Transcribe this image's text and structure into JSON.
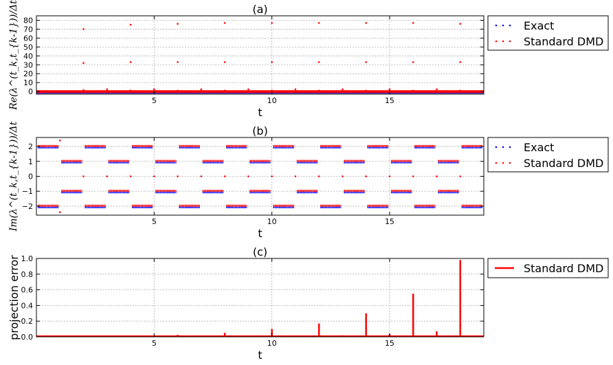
{
  "chart_data": [
    {
      "panel": "a",
      "type": "scatter",
      "title": "(a)",
      "xlabel": "t",
      "ylabel": "Re(λ^(t_k,t_{k-1}))/Δt",
      "xlim": [
        0,
        19
      ],
      "ylim": [
        -3,
        85
      ],
      "xticks": [
        5,
        10,
        15
      ],
      "yticks": [
        0,
        10,
        20,
        30,
        40,
        50,
        60,
        70,
        80
      ],
      "grid": true,
      "legend_placement": "outside-right-top",
      "series": [
        {
          "name": "Exact",
          "color": "#0000ff",
          "bands": [
            -1.5,
            -1.0
          ]
        },
        {
          "name": "Standard DMD",
          "color": "#ff0000",
          "bands": [
            -0.8,
            0.6
          ],
          "points": [
            [
              2,
              70
            ],
            [
              2,
              32
            ],
            [
              2,
              1.5
            ],
            [
              3,
              2.5
            ],
            [
              4,
              75
            ],
            [
              4,
              33
            ],
            [
              4,
              1
            ],
            [
              5,
              2.5
            ],
            [
              6,
              76
            ],
            [
              6,
              33
            ],
            [
              6,
              1
            ],
            [
              7,
              2.5
            ],
            [
              8,
              77
            ],
            [
              8,
              33
            ],
            [
              8,
              1
            ],
            [
              9,
              2.5
            ],
            [
              10,
              77
            ],
            [
              10,
              33
            ],
            [
              10,
              1
            ],
            [
              11,
              2.5
            ],
            [
              12,
              77
            ],
            [
              12,
              33
            ],
            [
              12,
              1
            ],
            [
              13,
              2.5
            ],
            [
              14,
              77
            ],
            [
              14,
              33
            ],
            [
              14,
              1
            ],
            [
              15,
              2.5
            ],
            [
              16,
              77
            ],
            [
              16,
              33
            ],
            [
              16,
              1
            ],
            [
              17,
              2.5
            ],
            [
              18,
              76
            ],
            [
              18,
              33
            ],
            [
              18,
              1
            ]
          ]
        }
      ]
    },
    {
      "panel": "b",
      "type": "scatter",
      "title": "(b)",
      "xlabel": "t",
      "ylabel": "Im(λ^(t_k,t_{k-1}))/Δt",
      "xlim": [
        0,
        19
      ],
      "ylim": [
        -2.6,
        2.6
      ],
      "xticks": [
        5,
        10,
        15
      ],
      "yticks": [
        -2,
        -1,
        0,
        1,
        2
      ],
      "grid": true,
      "legend_placement": "outside-right-top",
      "segments": [
        {
          "start": 0,
          "end": 1,
          "level": 2
        },
        {
          "start": 0,
          "end": 1,
          "level": -2
        },
        {
          "start": 1,
          "end": 2,
          "level": 1
        },
        {
          "start": 1,
          "end": 2,
          "level": -1
        },
        {
          "start": 2,
          "end": 3,
          "level": 2
        },
        {
          "start": 2,
          "end": 3,
          "level": -2
        },
        {
          "start": 3,
          "end": 4,
          "level": 1
        },
        {
          "start": 3,
          "end": 4,
          "level": -1
        },
        {
          "start": 4,
          "end": 5,
          "level": 2
        },
        {
          "start": 4,
          "end": 5,
          "level": -2
        },
        {
          "start": 5,
          "end": 6,
          "level": 1
        },
        {
          "start": 5,
          "end": 6,
          "level": -1
        },
        {
          "start": 6,
          "end": 7,
          "level": 2
        },
        {
          "start": 6,
          "end": 7,
          "level": -2
        },
        {
          "start": 7,
          "end": 8,
          "level": 1
        },
        {
          "start": 7,
          "end": 8,
          "level": -1
        },
        {
          "start": 8,
          "end": 9,
          "level": 2
        },
        {
          "start": 8,
          "end": 9,
          "level": -2
        },
        {
          "start": 9,
          "end": 10,
          "level": 1
        },
        {
          "start": 9,
          "end": 10,
          "level": -1
        },
        {
          "start": 10,
          "end": 11,
          "level": 2
        },
        {
          "start": 10,
          "end": 11,
          "level": -2
        },
        {
          "start": 11,
          "end": 12,
          "level": 1
        },
        {
          "start": 11,
          "end": 12,
          "level": -1
        },
        {
          "start": 12,
          "end": 13,
          "level": 2
        },
        {
          "start": 12,
          "end": 13,
          "level": -2
        },
        {
          "start": 13,
          "end": 14,
          "level": 1
        },
        {
          "start": 13,
          "end": 14,
          "level": -1
        },
        {
          "start": 14,
          "end": 15,
          "level": 2
        },
        {
          "start": 14,
          "end": 15,
          "level": -2
        },
        {
          "start": 15,
          "end": 16,
          "level": 1
        },
        {
          "start": 15,
          "end": 16,
          "level": -1
        },
        {
          "start": 16,
          "end": 17,
          "level": 2
        },
        {
          "start": 16,
          "end": 17,
          "level": -2
        },
        {
          "start": 17,
          "end": 18,
          "level": 1
        },
        {
          "start": 17,
          "end": 18,
          "level": -1
        },
        {
          "start": 18,
          "end": 19,
          "level": 2
        },
        {
          "start": 18,
          "end": 19,
          "level": -2
        }
      ],
      "series": [
        {
          "name": "Exact",
          "color": "#0000ff",
          "offset": -0.07
        },
        {
          "name": "Standard DMD",
          "color": "#ff0000",
          "offset": 0.03,
          "extra_points": [
            [
              1,
              2.4
            ],
            [
              1,
              -2.4
            ],
            [
              2,
              0
            ],
            [
              3,
              0
            ],
            [
              4,
              0
            ],
            [
              5,
              0
            ],
            [
              6,
              0
            ],
            [
              7,
              0
            ],
            [
              8,
              0
            ],
            [
              9,
              0
            ],
            [
              10,
              0
            ],
            [
              11,
              0
            ],
            [
              12,
              0
            ],
            [
              13,
              0
            ],
            [
              14,
              0
            ],
            [
              15,
              0
            ],
            [
              16,
              0
            ],
            [
              17,
              0
            ],
            [
              18,
              0
            ]
          ]
        }
      ]
    },
    {
      "panel": "c",
      "type": "line",
      "title": "(c)",
      "xlabel": "t",
      "ylabel": "projection error",
      "xlim": [
        0,
        19
      ],
      "ylim": [
        0,
        1.0
      ],
      "xticks": [
        5,
        10,
        15
      ],
      "yticks": [
        0.0,
        0.2,
        0.4,
        0.6,
        0.8,
        1.0
      ],
      "ytick_labels": [
        "0.0",
        "0.2",
        "0.4",
        "0.6",
        "0.8",
        "1.0"
      ],
      "grid": true,
      "legend_placement": "outside-right-top",
      "series": [
        {
          "name": "Standard DMD",
          "color": "#ff0000",
          "spikes": [
            [
              1,
              0.003
            ],
            [
              2,
              0.006
            ],
            [
              3,
              0.004
            ],
            [
              4,
              0.012
            ],
            [
              5,
              0.006
            ],
            [
              6,
              0.025
            ],
            [
              7,
              0.008
            ],
            [
              8,
              0.05
            ],
            [
              9,
              0.01
            ],
            [
              10,
              0.1
            ],
            [
              11,
              0.012
            ],
            [
              12,
              0.17
            ],
            [
              13,
              0.02
            ],
            [
              14,
              0.3
            ],
            [
              15,
              0.035
            ],
            [
              16,
              0.55
            ],
            [
              17,
              0.07
            ],
            [
              18,
              0.98
            ]
          ]
        }
      ]
    }
  ]
}
